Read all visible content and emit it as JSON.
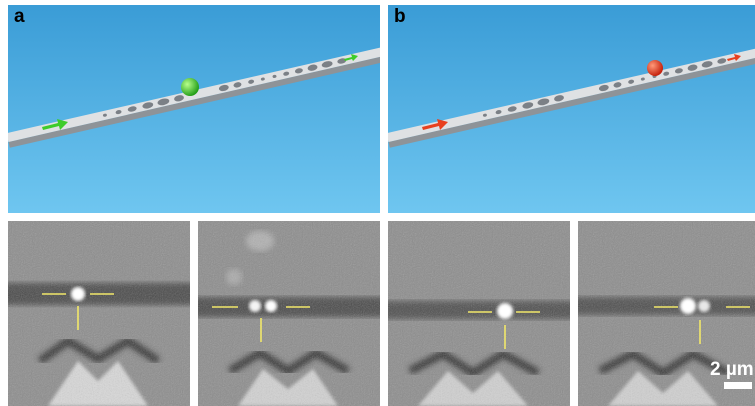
{
  "panels": [
    {
      "label": "a"
    },
    {
      "label": "b"
    }
  ],
  "scale_bar": {
    "label": "2 µm"
  }
}
